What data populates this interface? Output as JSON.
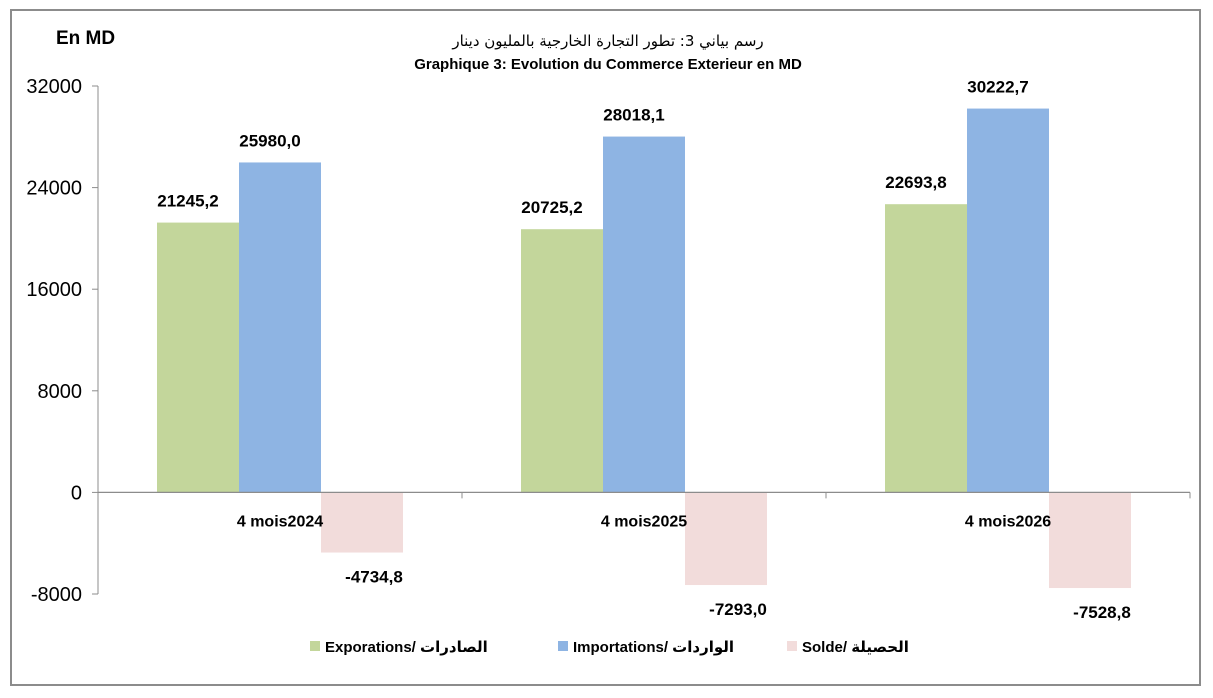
{
  "chart_data": {
    "type": "bar",
    "unit_label": "En MD",
    "title_ar": "رسم بياني 3: تطور التجارة الخارجية بالمليون دينار",
    "title": "Graphique 3: Evolution du Commerce Exterieur en MD",
    "categories": [
      "4 mois2024",
      "4 mois2025",
      "4 mois2026"
    ],
    "series": [
      {
        "name": "Exporations/  الصادرات",
        "color": "#c3d69b",
        "values": [
          21245.2,
          20725.2,
          22693.8
        ],
        "labels": [
          "21245,2",
          "20725,2",
          "22693,8"
        ]
      },
      {
        "name": "Importations/ الواردات",
        "color": "#8eb4e3",
        "values": [
          25980.0,
          28018.1,
          30222.7
        ],
        "labels": [
          "25980,0",
          "28018,1",
          "30222,7"
        ]
      },
      {
        "name": "Solde/ الحصيلة",
        "color": "#f2dcdb",
        "values": [
          -4734.8,
          -7293.0,
          -7528.8
        ],
        "labels": [
          "-4734,8",
          "-7293,0",
          "-7528,8"
        ]
      }
    ],
    "yticks": [
      "32000",
      "24000",
      "16000",
      "8000",
      "0",
      "-8000"
    ],
    "ylim": [
      -8000,
      32000
    ],
    "grid": false,
    "legend_position": "bottom"
  }
}
